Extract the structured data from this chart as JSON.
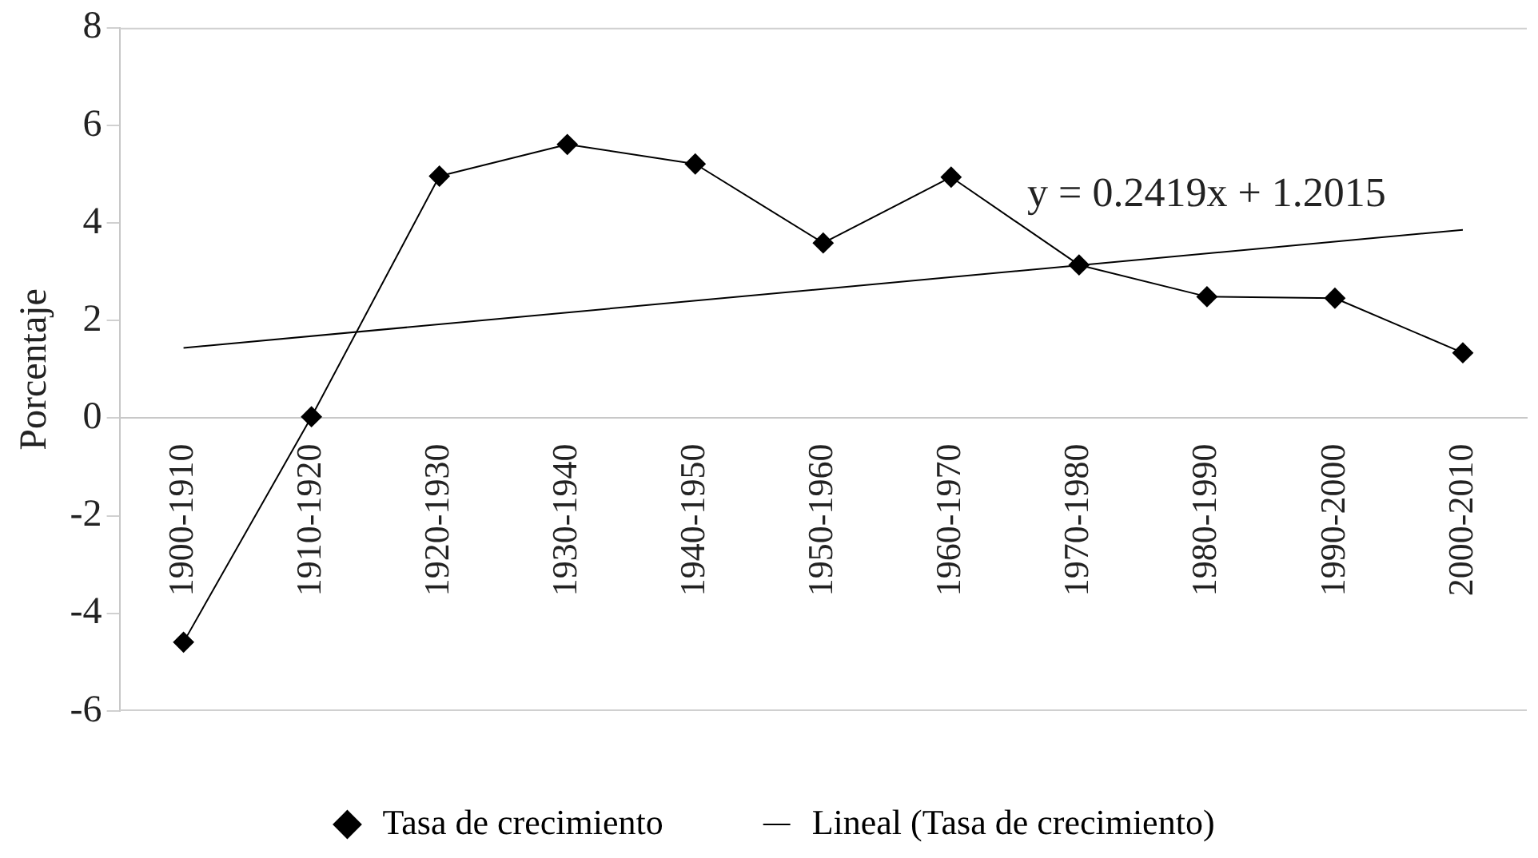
{
  "chart_data": {
    "type": "line",
    "ylabel": "Porcentaje",
    "categories": [
      "1900-1910",
      "1910-1920",
      "1920-1930",
      "1930-1940",
      "1940-1950",
      "1950-1960",
      "1960-1970",
      "1970-1980",
      "1980-1990",
      "1990-2000",
      "2000-2010"
    ],
    "series": [
      {
        "name": "Tasa de crecimiento",
        "color": "#000000",
        "values": [
          -4.59,
          0.03,
          4.96,
          5.61,
          5.21,
          3.59,
          4.94,
          3.14,
          2.49,
          2.46,
          1.34
        ],
        "marker": "diamond"
      },
      {
        "name": "Lineal (Tasa de crecimiento)",
        "type": "line",
        "color": "#000000",
        "x": [
          "1900-1910",
          "2000-2010"
        ],
        "values": [
          1.44,
          3.86
        ],
        "marker": "none"
      }
    ],
    "ylim": [
      -6,
      8
    ],
    "yticks": [
      -6,
      -4,
      -2,
      0,
      2,
      4,
      6,
      8
    ],
    "grid": false,
    "legend": "bottom",
    "line_style": "solid",
    "annotations": [
      "y = 0.2419x + 1.2015"
    ]
  }
}
